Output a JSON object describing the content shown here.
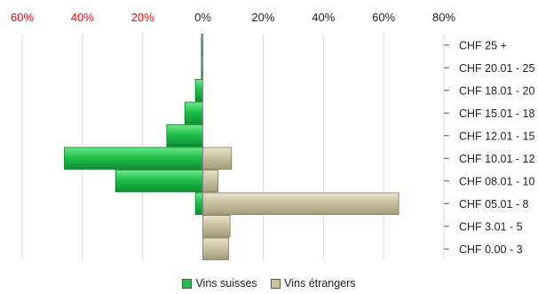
{
  "chart_data": {
    "type": "bar",
    "orientation": "horizontal",
    "stacked": true,
    "categories": [
      "CHF 25 +",
      "CHF 20.01 - 25",
      "CHF 18.01 - 20",
      "CHF 15.01 - 18",
      "CHF 12.01 - 15",
      "CHF 10.01 - 12",
      "CHF 08.01 - 10",
      "CHF 05.01 - 8",
      "CHF 3.01 - 5",
      "CHF 0.00 - 3"
    ],
    "series": [
      {
        "name": "Vins suisses",
        "color": "#1fc04a",
        "values": [
          -0.5,
          -0.5,
          -2.5,
          -6,
          -12,
          -46,
          -29,
          -2.5,
          0,
          0
        ]
      },
      {
        "name": "Vins étrangers",
        "color": "#c9c2a0",
        "values": [
          0,
          0,
          0,
          0,
          0,
          9.5,
          5,
          65,
          9,
          8.5
        ]
      }
    ],
    "xlim": [
      -60,
      80
    ],
    "x_ticks": [
      -60,
      -40,
      -20,
      0,
      20,
      40,
      60,
      80
    ],
    "x_tick_labels": [
      "60%",
      "40%",
      "20%",
      "0%",
      "20%",
      "40%",
      "60%",
      "80%"
    ],
    "negative_tick_color": "#ff0000",
    "grid": true,
    "legend_position": "bottom"
  }
}
